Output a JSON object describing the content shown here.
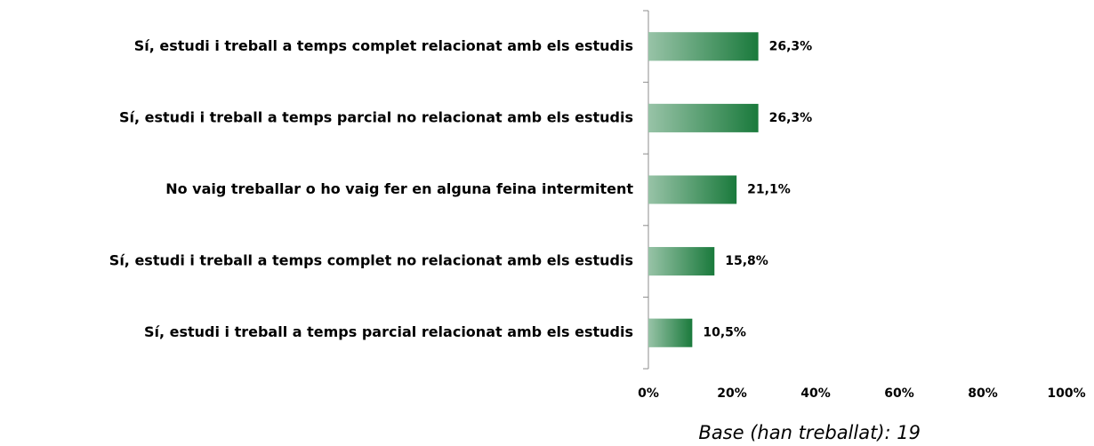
{
  "chart_data": {
    "type": "hbar",
    "categories": [
      "Sí, estudi i treball a temps complet relacionat amb els estudis",
      "Sí, estudi i treball a temps parcial no relacionat amb els estudis",
      "No vaig treballar o ho vaig fer en alguna feina intermitent",
      "Sí, estudi i treball a temps complet no relacionat amb els estudis",
      "Sí, estudi i treball a temps parcial relacionat amb els estudis"
    ],
    "values": [
      26.3,
      26.3,
      21.1,
      15.8,
      10.5
    ],
    "value_labels": [
      "26,3%",
      "26,3%",
      "21,1%",
      "15,8%",
      "10,5%"
    ],
    "color": "#1a7a3c",
    "xlim": [
      0,
      100
    ],
    "xticks": [
      {
        "value": 0,
        "label": "0%"
      },
      {
        "value": 20,
        "label": "20%"
      },
      {
        "value": 40,
        "label": "40%"
      },
      {
        "value": 60,
        "label": "60%"
      },
      {
        "value": 80,
        "label": "80%"
      },
      {
        "value": 100,
        "label": "100%"
      }
    ],
    "annotation": "Base (han treballat): 19"
  }
}
